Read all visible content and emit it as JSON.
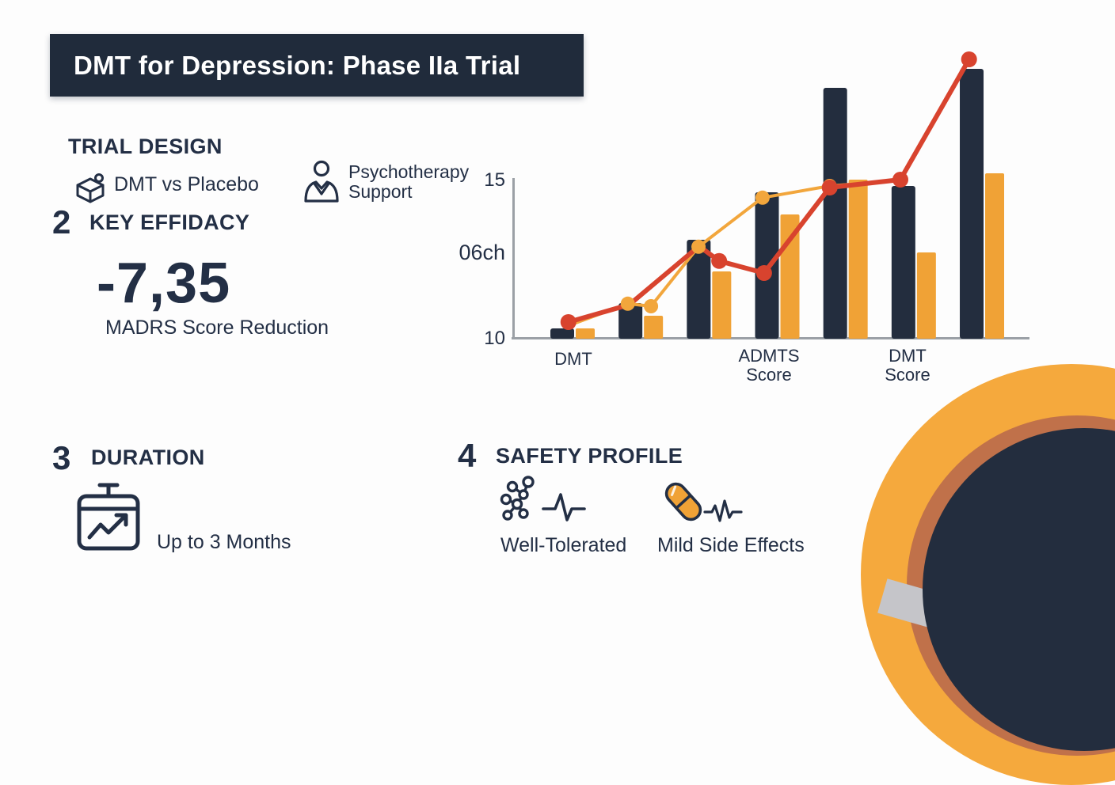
{
  "header": {
    "title": "DMT for Depression: Phase IIa Trial"
  },
  "sections": {
    "trial_design": {
      "heading": "TRIAL DESIGN",
      "items": [
        {
          "icon": "box-icon",
          "label": "DMT vs Placebo"
        },
        {
          "icon": "person-icon",
          "label": "Psychotherapy Support"
        }
      ]
    },
    "key_efficacy": {
      "number": "2",
      "heading": "KEY EFFIDACY",
      "value": "-7,35",
      "caption": "MADRS Score Reduction"
    },
    "duration": {
      "number": "3",
      "heading": "DURATION",
      "icon": "calendar-chart-icon",
      "label": "Up to 3 Months"
    },
    "safety_profile": {
      "number": "4",
      "heading": "SAFETY PROFILE",
      "items": [
        {
          "icons": [
            "molecule-icon",
            "pulse-icon"
          ],
          "label": "Well-Tolerated"
        },
        {
          "icons": [
            "capsule-icon",
            "pulse-icon"
          ],
          "label": "Mild Side Effects"
        }
      ]
    }
  },
  "chart_data": {
    "type": "bar",
    "title": "",
    "xlabel": "",
    "ylabel": "",
    "ylim": [
      10,
      15
    ],
    "grid": false,
    "legend": "none",
    "y_ticks": [
      {
        "label": "15",
        "value": 15
      },
      {
        "label": "06ch",
        "value": 12.7
      },
      {
        "label": "10",
        "value": 10
      }
    ],
    "x_labels": [
      {
        "lines": [
          "DMT"
        ],
        "x": 0.117
      },
      {
        "lines": [
          "ADMTS",
          "Score"
        ],
        "x": 0.495
      },
      {
        "lines": [
          "DMT",
          "Score"
        ],
        "x": 0.764
      }
    ],
    "series": [
      {
        "name": "navy-bars",
        "color": "#232d3e",
        "values": [
          10.3,
          11.1,
          13.1,
          14.6,
          17.9,
          14.8,
          18.5
        ]
      },
      {
        "name": "orange-bars",
        "color": "#f0a236",
        "values": [
          10.3,
          10.7,
          12.1,
          13.9,
          15.0,
          12.7,
          15.2
        ]
      }
    ],
    "line_series": [
      {
        "name": "orange-line",
        "color": "#f2a63c",
        "width": 4,
        "marker_r": 9,
        "points": [
          [
            0.109,
            10.4
          ],
          [
            0.222,
            11.08
          ],
          [
            0.267,
            11.0
          ],
          [
            0.359,
            12.88
          ],
          [
            0.483,
            14.43
          ],
          [
            0.613,
            14.8
          ],
          [
            0.755,
            14.98
          ]
        ],
        "markers": [
          1,
          2,
          3,
          4,
          5
        ]
      },
      {
        "name": "red-line",
        "color": "#d8432e",
        "width": 6,
        "marker_r": 10,
        "points": [
          [
            0.107,
            10.5
          ],
          [
            0.225,
            11.05
          ],
          [
            0.36,
            12.9
          ],
          [
            0.399,
            12.43
          ],
          [
            0.486,
            12.05
          ],
          [
            0.613,
            14.75
          ],
          [
            0.75,
            15.0
          ],
          [
            0.883,
            18.8
          ]
        ],
        "markers": [
          0,
          3,
          4,
          5,
          6,
          7
        ]
      }
    ]
  },
  "colors": {
    "navy": "#232d3e",
    "orange": "#f0a236",
    "red": "#d8432e",
    "header_bg": "#202b3b",
    "axis": "#9ba0a6",
    "circle_orange": "#f5a93d",
    "ring_brown": "#c0714a",
    "ring_gray": "#c5c5c9",
    "text": "#232f45"
  }
}
